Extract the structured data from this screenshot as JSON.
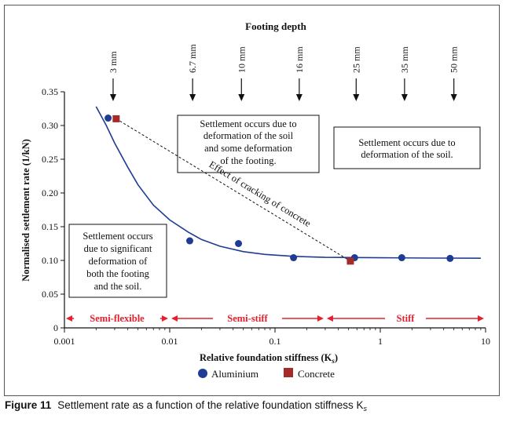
{
  "chart_data": {
    "type": "scatter",
    "title": "Footing depth",
    "xlabel": "Relative foundation stiffness (K",
    "xlabel_sub": "s",
    "xlabel_close": ")",
    "ylabel": "Normalised settlement rate (1/kN)",
    "xscale": "log",
    "xlim": [
      0.001,
      10
    ],
    "ylim": [
      0,
      0.35
    ],
    "x_ticks": [
      {
        "value": 0.001,
        "label": "0.001"
      },
      {
        "value": 0.01,
        "label": "0.01"
      },
      {
        "value": 0.1,
        "label": "0.1"
      },
      {
        "value": 1,
        "label": "1"
      },
      {
        "value": 10,
        "label": "10"
      }
    ],
    "y_ticks": [
      {
        "value": 0,
        "label": "0"
      },
      {
        "value": 0.05,
        "label": "0.05"
      },
      {
        "value": 0.1,
        "label": "0.10"
      },
      {
        "value": 0.15,
        "label": "0.15"
      },
      {
        "value": 0.2,
        "label": "0.20"
      },
      {
        "value": 0.25,
        "label": "0.25"
      },
      {
        "value": 0.3,
        "label": "0.30"
      },
      {
        "value": 0.35,
        "label": "0.35"
      }
    ],
    "series": [
      {
        "name": "Aluminium",
        "marker": "circle",
        "color": "#1f3c95",
        "points": [
          {
            "x": 0.0026,
            "y": 0.311
          },
          {
            "x": 0.0155,
            "y": 0.129
          },
          {
            "x": 0.045,
            "y": 0.125
          },
          {
            "x": 0.15,
            "y": 0.104
          },
          {
            "x": 0.57,
            "y": 0.104
          },
          {
            "x": 1.6,
            "y": 0.104
          },
          {
            "x": 4.6,
            "y": 0.103
          }
        ]
      },
      {
        "name": "Concrete",
        "marker": "square",
        "color": "#a52a2a",
        "points": [
          {
            "x": 0.0031,
            "y": 0.31
          },
          {
            "x": 0.52,
            "y": 0.099
          }
        ]
      }
    ],
    "trend_curve": {
      "color": "#1f3c95",
      "points": [
        {
          "x": 0.002,
          "y": 0.328
        },
        {
          "x": 0.0025,
          "y": 0.3
        },
        {
          "x": 0.003,
          "y": 0.274
        },
        {
          "x": 0.004,
          "y": 0.238
        },
        {
          "x": 0.005,
          "y": 0.212
        },
        {
          "x": 0.007,
          "y": 0.182
        },
        {
          "x": 0.01,
          "y": 0.16
        },
        {
          "x": 0.015,
          "y": 0.142
        },
        {
          "x": 0.02,
          "y": 0.131
        },
        {
          "x": 0.03,
          "y": 0.121
        },
        {
          "x": 0.05,
          "y": 0.113
        },
        {
          "x": 0.08,
          "y": 0.109
        },
        {
          "x": 0.15,
          "y": 0.106
        },
        {
          "x": 0.3,
          "y": 0.1045
        },
        {
          "x": 1,
          "y": 0.104
        },
        {
          "x": 3,
          "y": 0.1035
        },
        {
          "x": 9,
          "y": 0.1033
        }
      ]
    },
    "cracking_line": {
      "label": "Effect of cracking of concrete",
      "from": {
        "x": 0.0031,
        "y": 0.31
      },
      "to": {
        "x": 0.52,
        "y": 0.099
      }
    },
    "footing_depths": [
      {
        "label": "3 mm",
        "x": 0.0029
      },
      {
        "label": "6.7 mm",
        "x": 0.0165
      },
      {
        "label": "10 mm",
        "x": 0.048
      },
      {
        "label": "16 mm",
        "x": 0.17
      },
      {
        "label": "25 mm",
        "x": 0.59
      },
      {
        "label": "35 mm",
        "x": 1.7
      },
      {
        "label": "50 mm",
        "x": 5.0
      }
    ],
    "regions": [
      {
        "label": "Semi-flexible",
        "from": 0.001,
        "to": 0.01
      },
      {
        "label": "Semi-stiff",
        "from": 0.01,
        "to": 0.3
      },
      {
        "label": "Stiff",
        "from": 0.3,
        "to": 10
      }
    ],
    "annotations": [
      {
        "name": "annotation-soil-and-footing",
        "lines": [
          "Settlement occurs due to",
          "deformation of the soil",
          "and some deformation",
          "of the footing."
        ]
      },
      {
        "name": "annotation-soil-only",
        "lines": [
          "Settlement occurs due to",
          "deformation of the soil."
        ]
      },
      {
        "name": "annotation-significant",
        "lines": [
          "Settlement occurs",
          "due to significant",
          "deformation of",
          "both the footing",
          "and the soil."
        ]
      }
    ],
    "legend": {
      "position": "bottom-center",
      "entries": [
        "Aluminium",
        "Concrete"
      ]
    },
    "colors": {
      "region_arrow": "#e3202f",
      "curve": "#1f3c95",
      "axis": "#111111"
    }
  },
  "caption": {
    "figure_label": "Figure 11",
    "text": "Settlement rate as a function of the relative foundation stiffness K",
    "subscript": "s"
  }
}
